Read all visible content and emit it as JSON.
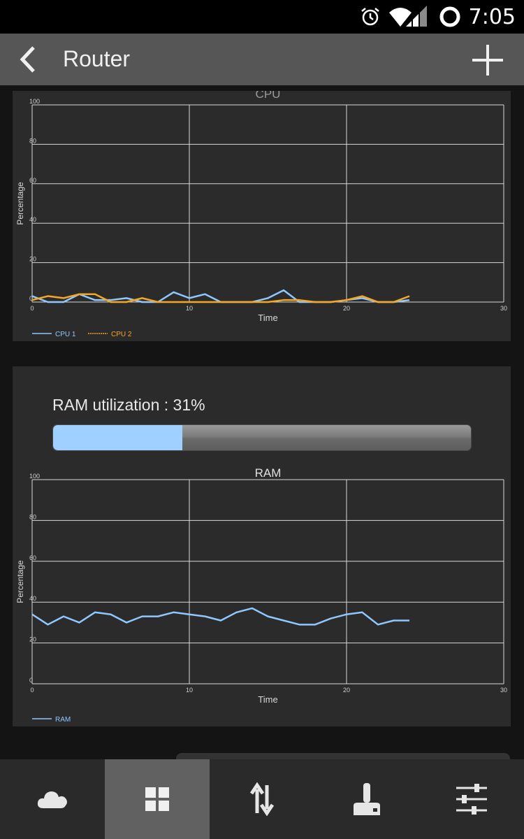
{
  "status_bar": {
    "time": "7:05"
  },
  "action_bar": {
    "title": "Router"
  },
  "cpu_chart": {
    "chart_data": {
      "type": "line",
      "title": "CPU",
      "xlabel": "Time",
      "ylabel": "Percentage",
      "xlim": [
        0,
        30
      ],
      "ylim": [
        0,
        100
      ],
      "x_ticks": [
        "0",
        "10",
        "20",
        "30"
      ],
      "y_ticks": [
        "0",
        "20",
        "40",
        "60",
        "80",
        "100"
      ],
      "grid": true,
      "legend": "bottom-left",
      "series": [
        {
          "name": "CPU 1",
          "color": "#8ec8ff",
          "x": [
            0,
            1,
            2,
            3,
            4,
            5,
            6,
            7,
            8,
            9,
            10,
            11,
            12,
            13,
            14,
            15,
            16,
            17,
            18,
            19,
            20,
            21,
            22,
            23,
            24
          ],
          "values": [
            3,
            0,
            0,
            4,
            1,
            1,
            2,
            0,
            0,
            5,
            2,
            4,
            0,
            0,
            0,
            2,
            6,
            0,
            0,
            0,
            1,
            2,
            0,
            0,
            1
          ]
        },
        {
          "name": "CPU 2",
          "color": "#f5a623",
          "x": [
            0,
            1,
            2,
            3,
            4,
            5,
            6,
            7,
            8,
            9,
            10,
            11,
            12,
            13,
            14,
            15,
            16,
            17,
            18,
            19,
            20,
            21,
            22,
            23,
            24
          ],
          "values": [
            1,
            3,
            2,
            4,
            4,
            0,
            0,
            2,
            0,
            0,
            0,
            0,
            0,
            0,
            0,
            0,
            1,
            1,
            0,
            0,
            1,
            3,
            0,
            0,
            3
          ]
        }
      ]
    }
  },
  "ram": {
    "label": "RAM utilization : 31%",
    "percent": 31
  },
  "ram_chart": {
    "chart_data": {
      "type": "line",
      "title": "RAM",
      "xlabel": "Time",
      "ylabel": "Percentage",
      "xlim": [
        0,
        30
      ],
      "ylim": [
        0,
        100
      ],
      "x_ticks": [
        "0",
        "10",
        "20",
        "30"
      ],
      "y_ticks": [
        "0",
        "20",
        "40",
        "60",
        "80",
        "100"
      ],
      "grid": true,
      "legend": "bottom-left",
      "series": [
        {
          "name": "RAM",
          "color": "#8ec8ff",
          "x": [
            0,
            1,
            2,
            3,
            4,
            5,
            6,
            7,
            8,
            9,
            10,
            11,
            12,
            13,
            14,
            15,
            16,
            17,
            18,
            19,
            20,
            21,
            22,
            23,
            24
          ],
          "values": [
            34,
            29,
            33,
            30,
            35,
            34,
            30,
            33,
            33,
            35,
            34,
            33,
            31,
            35,
            37,
            33,
            31,
            29,
            29,
            32,
            34,
            35,
            29,
            31,
            31
          ]
        }
      ]
    }
  },
  "bottom_nav": {
    "tabs": [
      {
        "icon": "cloud-icon",
        "active": false
      },
      {
        "icon": "dashboard-grid-icon",
        "active": true
      },
      {
        "icon": "transfer-arrows-icon",
        "active": false
      },
      {
        "icon": "joystick-icon",
        "active": false
      },
      {
        "icon": "sliders-icon",
        "active": false
      }
    ]
  },
  "colors": {
    "accent": "#9fd0ff",
    "cpu2": "#f5a623",
    "panel": "#2b2b2b"
  }
}
